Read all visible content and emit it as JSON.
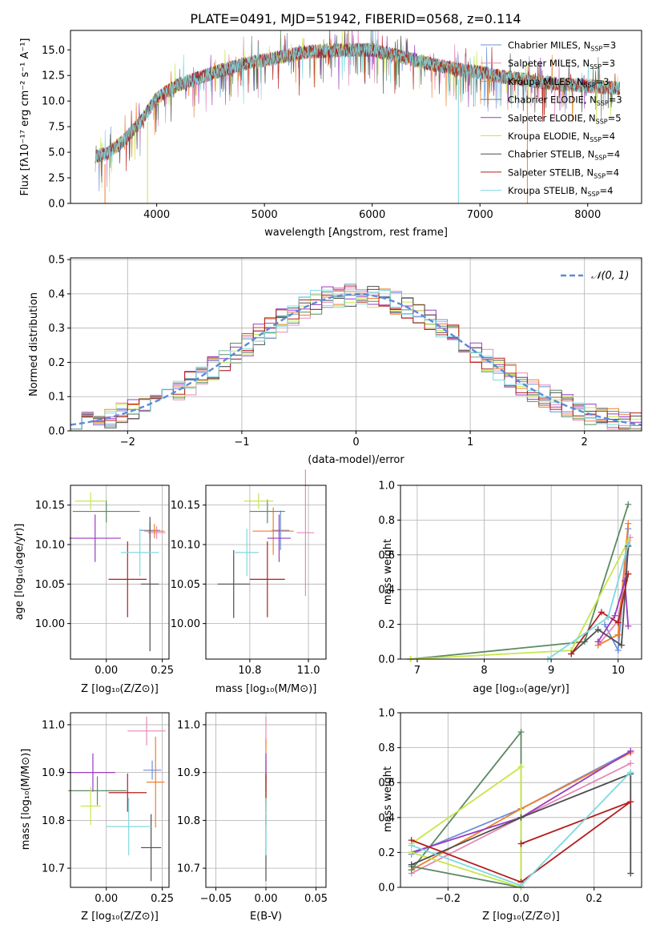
{
  "figure": {
    "title": "PLATE=0491, MJD=51942, FIBERID=0568, z=0.114"
  },
  "colors": {
    "chabrier_miles": "#6f8fd8",
    "salpeter_miles": "#e58ab8",
    "kroupa_miles": "#f07f2a",
    "chabrier_elodie": "#5c8a64",
    "salpeter_elodie": "#9a3bc0",
    "kroupa_elodie": "#c8e64b",
    "chabrier_stelib": "#4e4e4e",
    "salpeter_stelib": "#b41e1e",
    "kroupa_stelib": "#7fd9e0",
    "normal_curve": "#5b8bd8"
  },
  "chart_data": [
    {
      "id": "spectrum",
      "type": "line",
      "title": "PLATE=0491, MJD=51942, FIBERID=0568, z=0.114",
      "xlabel": "wavelength [Angstrom, rest frame]",
      "ylabel": "Flux [fλ10⁻¹⁷ erg cm⁻² s⁻¹ A⁻¹]",
      "xlim": [
        3200,
        8500
      ],
      "ylim": [
        0,
        16.9
      ],
      "xticks": [
        "4000",
        "5000",
        "6000",
        "7000",
        "8000"
      ],
      "yticks": [
        "0.0",
        "2.5",
        "5.0",
        "7.5",
        "10.0",
        "12.5",
        "15.0"
      ],
      "legend_position": "right",
      "legend": [
        {
          "label": "Chabrier MILES, N",
          "sub": "SSP",
          "n": "=3",
          "color": "#6f8fd8"
        },
        {
          "label": "Salpeter MILES, N",
          "sub": "SSP",
          "n": "=3",
          "color": "#e58ab8"
        },
        {
          "label": "Kroupa MILES, N",
          "sub": "SSP",
          "n": "=3",
          "color": "#f07f2a"
        },
        {
          "label": "Chabrier ELODIE, N",
          "sub": "SSP",
          "n": "=3",
          "color": "#5c8a64"
        },
        {
          "label": "Salpeter ELODIE, N",
          "sub": "SSP",
          "n": "=5",
          "color": "#9a3bc0"
        },
        {
          "label": "Kroupa ELODIE, N",
          "sub": "SSP",
          "n": "=4",
          "color": "#c8e64b"
        },
        {
          "label": "Chabrier STELIB, N",
          "sub": "SSP",
          "n": "=4",
          "color": "#4e4e4e"
        },
        {
          "label": "Salpeter STELIB, N",
          "sub": "SSP",
          "n": "=4",
          "color": "#b41e1e"
        },
        {
          "label": "Kroupa STELIB, N",
          "sub": "SSP",
          "n": "=4",
          "color": "#7fd9e0"
        }
      ],
      "continuum": [
        [
          3430,
          4.6
        ],
        [
          3550,
          4.9
        ],
        [
          3700,
          6.2
        ],
        [
          3850,
          8.0
        ],
        [
          4000,
          10.3
        ],
        [
          4200,
          11.6
        ],
        [
          4400,
          12.3
        ],
        [
          4600,
          13.0
        ],
        [
          4800,
          13.6
        ],
        [
          5000,
          14.0
        ],
        [
          5200,
          14.4
        ],
        [
          5400,
          14.8
        ],
        [
          5600,
          14.9
        ],
        [
          5800,
          15.0
        ],
        [
          6000,
          15.0
        ],
        [
          6200,
          14.5
        ],
        [
          6400,
          14.0
        ],
        [
          6600,
          13.5
        ],
        [
          6800,
          13.1
        ],
        [
          7000,
          12.8
        ],
        [
          7200,
          12.4
        ],
        [
          7400,
          12.1
        ],
        [
          7600,
          11.8
        ],
        [
          7800,
          11.6
        ],
        [
          8000,
          11.5
        ],
        [
          8200,
          11.3
        ],
        [
          8300,
          11.2
        ]
      ],
      "dips": [
        [
          3520,
          0
        ],
        [
          3915,
          0
        ],
        [
          6800,
          0
        ],
        [
          7440,
          0
        ]
      ]
    },
    {
      "id": "residuals",
      "type": "histogram",
      "xlabel": "(data-model)/error",
      "ylabel": "Normed distribution",
      "xlim": [
        -2.5,
        2.5
      ],
      "ylim": [
        0,
        0.505
      ],
      "xticks": [
        -2,
        -1,
        0,
        1,
        2
      ],
      "xtick_labels": [
        "−2",
        "−1",
        "0",
        "1",
        "2"
      ],
      "yticks": [
        "0.0",
        "0.1",
        "0.2",
        "0.3",
        "0.4",
        "0.5"
      ],
      "bin_width": 0.1,
      "legend": "𝒩(0, 1)",
      "legend_position": "top-right",
      "normal": {
        "mean": 0,
        "sigma": 1
      }
    },
    {
      "id": "age-vs-Z",
      "type": "scatter",
      "xlabel": "Z [log₁₀(Z/Z⊙)]",
      "ylabel": "age  [log₁₀(age/yr)]",
      "xlim": [
        -0.16,
        0.28
      ],
      "ylim": [
        9.955,
        10.175
      ],
      "xticks": [
        "0.00",
        "0.25"
      ],
      "yticks": [
        "10.00",
        "10.05",
        "10.10",
        "10.15"
      ],
      "points": [
        {
          "x": 0.195,
          "y": 10.118,
          "xerr": 0.045,
          "yerr": 0.01,
          "color": "#6f8fd8"
        },
        {
          "x": 0.225,
          "y": 10.115,
          "xerr": 0.04,
          "yerr": 0.008,
          "color": "#e58ab8"
        },
        {
          "x": 0.215,
          "y": 10.117,
          "xerr": 0.045,
          "yerr": 0.009,
          "color": "#f07f2a"
        },
        {
          "x": 0.0,
          "y": 10.142,
          "xerr": 0.15,
          "yerr": 0.014,
          "color": "#5c8a64"
        },
        {
          "x": -0.05,
          "y": 10.108,
          "xerr": 0.115,
          "yerr": 0.03,
          "color": "#9a3bc0"
        },
        {
          "x": -0.07,
          "y": 10.155,
          "xerr": 0.07,
          "yerr": 0.011,
          "color": "#c8e64b"
        },
        {
          "x": 0.195,
          "y": 10.05,
          "xerr": 0.04,
          "yerr": 0.085,
          "color": "#4e4e4e"
        },
        {
          "x": 0.095,
          "y": 10.056,
          "xerr": 0.085,
          "yerr": 0.048,
          "color": "#b41e1e"
        },
        {
          "x": 0.15,
          "y": 10.09,
          "xerr": 0.085,
          "yerr": 0.03,
          "color": "#7fd9e0"
        }
      ]
    },
    {
      "id": "age-vs-mass",
      "type": "scatter",
      "xlabel": "mass [log₁₀(M/M⊙)]",
      "ylabel": "",
      "xlim": [
        10.65,
        11.06
      ],
      "ylim": [
        9.955,
        10.175
      ],
      "xticks": [
        "10.8",
        "11.0"
      ],
      "yticks": [
        "10.00",
        "10.05",
        "10.10",
        "10.15"
      ],
      "points": [
        {
          "x": 10.905,
          "y": 10.118,
          "xerr": 0.03,
          "yerr": 0.025,
          "color": "#6f8fd8"
        },
        {
          "x": 10.99,
          "y": 10.115,
          "xerr": 0.03,
          "yerr": 0.08,
          "color": "#e58ab8"
        },
        {
          "x": 10.88,
          "y": 10.117,
          "xerr": 0.07,
          "yerr": 0.03,
          "color": "#f07f2a"
        },
        {
          "x": 10.86,
          "y": 10.142,
          "xerr": 0.06,
          "yerr": 0.015,
          "color": "#5c8a64"
        },
        {
          "x": 10.9,
          "y": 10.108,
          "xerr": 0.04,
          "yerr": 0.03,
          "color": "#9a3bc0"
        },
        {
          "x": 10.83,
          "y": 10.155,
          "xerr": 0.05,
          "yerr": 0.01,
          "color": "#c8e64b"
        },
        {
          "x": 10.745,
          "y": 10.05,
          "xerr": 0.055,
          "yerr": 0.043,
          "color": "#4e4e4e"
        },
        {
          "x": 10.86,
          "y": 10.056,
          "xerr": 0.06,
          "yerr": 0.048,
          "color": "#b41e1e"
        },
        {
          "x": 10.79,
          "y": 10.09,
          "xerr": 0.04,
          "yerr": 0.03,
          "color": "#7fd9e0"
        }
      ]
    },
    {
      "id": "mass-weight-vs-age",
      "type": "line",
      "xlabel": "age  [log₁₀(age/yr)]",
      "ylabel": "mass weight",
      "xlim": [
        6.75,
        10.35
      ],
      "ylim": [
        0,
        1.0
      ],
      "xticks": [
        "7",
        "8",
        "9",
        "10"
      ],
      "yticks": [
        "0.0",
        "0.2",
        "0.4",
        "0.6",
        "0.8",
        "1.0"
      ],
      "series": [
        {
          "color": "#6f8fd8",
          "points": [
            [
              9.8,
              0.2
            ],
            [
              10.0,
              0.05
            ],
            [
              10.15,
              0.75
            ]
          ]
        },
        {
          "color": "#e58ab8",
          "points": [
            [
              9.7,
              0.08
            ],
            [
              10.0,
              0.22
            ],
            [
              10.18,
              0.7
            ]
          ]
        },
        {
          "color": "#f07f2a",
          "points": [
            [
              9.7,
              0.08
            ],
            [
              10.0,
              0.14
            ],
            [
              10.15,
              0.78
            ]
          ]
        },
        {
          "color": "#5c8a64",
          "points": [
            [
              6.9,
              0.0
            ],
            [
              9.5,
              0.1
            ],
            [
              10.15,
              0.89
            ]
          ]
        },
        {
          "color": "#9a3bc0",
          "points": [
            [
              9.7,
              0.1
            ],
            [
              9.95,
              0.25
            ],
            [
              10.1,
              0.45
            ],
            [
              10.15,
              0.19
            ]
          ]
        },
        {
          "color": "#c8e64b",
          "points": [
            [
              6.9,
              0.0
            ],
            [
              9.3,
              0.05
            ],
            [
              10.15,
              0.68
            ]
          ]
        },
        {
          "color": "#4e4e4e",
          "points": [
            [
              9.3,
              0.03
            ],
            [
              9.7,
              0.17
            ],
            [
              10.05,
              0.08
            ],
            [
              10.15,
              0.65
            ]
          ]
        },
        {
          "color": "#b41e1e",
          "points": [
            [
              9.3,
              0.03
            ],
            [
              9.75,
              0.27
            ],
            [
              10.0,
              0.21
            ],
            [
              10.15,
              0.49
            ]
          ]
        },
        {
          "color": "#7fd9e0",
          "points": [
            [
              8.95,
              0.0
            ],
            [
              9.85,
              0.24
            ],
            [
              10.15,
              0.66
            ]
          ]
        }
      ]
    },
    {
      "id": "mass-vs-Z",
      "type": "scatter",
      "xlabel": "Z [log₁₀(Z/Z⊙)]",
      "ylabel": "mass [log₁₀(M/M⊙)]",
      "xlim": [
        -0.16,
        0.28
      ],
      "ylim": [
        10.66,
        11.025
      ],
      "xticks": [
        "0.00",
        "0.25"
      ],
      "yticks": [
        "10.7",
        "10.8",
        "10.9",
        "11.0"
      ],
      "points": [
        {
          "x": 0.205,
          "y": 10.905,
          "xerr": 0.04,
          "yerr": 0.02,
          "color": "#6f8fd8"
        },
        {
          "x": 0.18,
          "y": 10.987,
          "xerr": 0.085,
          "yerr": 0.03,
          "color": "#e58ab8"
        },
        {
          "x": 0.22,
          "y": 10.88,
          "xerr": 0.04,
          "yerr": 0.095,
          "color": "#f07f2a"
        },
        {
          "x": -0.04,
          "y": 10.862,
          "xerr": 0.13,
          "yerr": 0.03,
          "color": "#5c8a64"
        },
        {
          "x": -0.06,
          "y": 10.9,
          "xerr": 0.1,
          "yerr": 0.04,
          "color": "#9a3bc0"
        },
        {
          "x": -0.07,
          "y": 10.83,
          "xerr": 0.045,
          "yerr": 0.04,
          "color": "#c8e64b"
        },
        {
          "x": 0.2,
          "y": 10.743,
          "xerr": 0.045,
          "yerr": 0.07,
          "color": "#4e4e4e"
        },
        {
          "x": 0.095,
          "y": 10.858,
          "xerr": 0.085,
          "yerr": 0.04,
          "color": "#b41e1e"
        },
        {
          "x": 0.1,
          "y": 10.787,
          "xerr": 0.1,
          "yerr": 0.06,
          "color": "#7fd9e0"
        }
      ]
    },
    {
      "id": "mass-vs-ebv",
      "type": "scatter",
      "xlabel": "E(B-V)",
      "ylabel": "",
      "xlim": [
        -0.06,
        0.06
      ],
      "ylim": [
        10.66,
        11.025
      ],
      "xticks": [
        "−0.05",
        "0.00",
        "0.05"
      ],
      "xtick_values": [
        -0.05,
        0.0,
        0.05
      ],
      "yticks": [
        "10.7",
        "10.8",
        "10.9",
        "11.0"
      ],
      "points": [
        {
          "x": 0.0,
          "y": 10.905,
          "yerr": 0.02,
          "color": "#6f8fd8"
        },
        {
          "x": 0.0,
          "y": 10.987,
          "yerr": 0.03,
          "color": "#e58ab8"
        },
        {
          "x": 0.0,
          "y": 10.88,
          "yerr": 0.09,
          "color": "#f07f2a"
        },
        {
          "x": 0.0,
          "y": 10.862,
          "yerr": 0.03,
          "color": "#5c8a64"
        },
        {
          "x": 0.0,
          "y": 10.9,
          "yerr": 0.04,
          "color": "#9a3bc0"
        },
        {
          "x": 0.0,
          "y": 10.83,
          "yerr": 0.04,
          "color": "#c8e64b"
        },
        {
          "x": 0.0,
          "y": 10.743,
          "yerr": 0.07,
          "color": "#4e4e4e"
        },
        {
          "x": 0.0,
          "y": 10.858,
          "yerr": 0.04,
          "color": "#b41e1e"
        },
        {
          "x": 0.0,
          "y": 10.787,
          "yerr": 0.06,
          "color": "#7fd9e0"
        }
      ]
    },
    {
      "id": "mass-weight-vs-Z",
      "type": "line",
      "xlabel": "Z [log₁₀(Z/Z⊙)]",
      "ylabel": "mass weight",
      "xlim": [
        -0.33,
        0.33
      ],
      "ylim": [
        0,
        1.0
      ],
      "xticks": [
        "−0.2",
        "0.0",
        "0.2"
      ],
      "xtick_values": [
        -0.2,
        0.0,
        0.2
      ],
      "yticks": [
        "0.0",
        "0.2",
        "0.4",
        "0.6",
        "0.8",
        "1.0"
      ],
      "series": [
        {
          "color": "#6f8fd8",
          "points": [
            [
              -0.3,
              0.19
            ],
            [
              0.0,
              0.45
            ],
            [
              0.3,
              0.78
            ]
          ]
        },
        {
          "color": "#e58ab8",
          "points": [
            [
              -0.3,
              0.08
            ],
            [
              0.0,
              0.4
            ],
            [
              0.3,
              0.71
            ]
          ]
        },
        {
          "color": "#f07f2a",
          "points": [
            [
              -0.3,
              0.1
            ],
            [
              0.0,
              0.45
            ],
            [
              0.3,
              0.77
            ]
          ]
        },
        {
          "color": "#5c8a64",
          "points": [
            [
              -0.3,
              0.1
            ],
            [
              0.0,
              0.89
            ],
            [
              0.0,
              0.0
            ],
            [
              -0.3,
              0.12
            ]
          ]
        },
        {
          "color": "#9a3bc0",
          "points": [
            [
              -0.3,
              0.2
            ],
            [
              0.0,
              0.4
            ],
            [
              0.3,
              0.78
            ]
          ]
        },
        {
          "color": "#c8e64b",
          "points": [
            [
              -0.3,
              0.25
            ],
            [
              0.0,
              0.69
            ],
            [
              0.0,
              0.0
            ],
            [
              -0.3,
              0.2
            ]
          ]
        },
        {
          "color": "#4e4e4e",
          "points": [
            [
              -0.3,
              0.13
            ],
            [
              0.0,
              0.4
            ],
            [
              0.3,
              0.65
            ],
            [
              0.3,
              0.08
            ]
          ]
        },
        {
          "color": "#b41e1e",
          "points": [
            [
              -0.3,
              0.27
            ],
            [
              0.0,
              0.03
            ],
            [
              0.3,
              0.49
            ],
            [
              0.0,
              0.25
            ]
          ]
        },
        {
          "color": "#7fd9e0",
          "points": [
            [
              -0.3,
              0.24
            ],
            [
              0.0,
              0.01
            ],
            [
              0.3,
              0.66
            ]
          ]
        }
      ]
    }
  ]
}
